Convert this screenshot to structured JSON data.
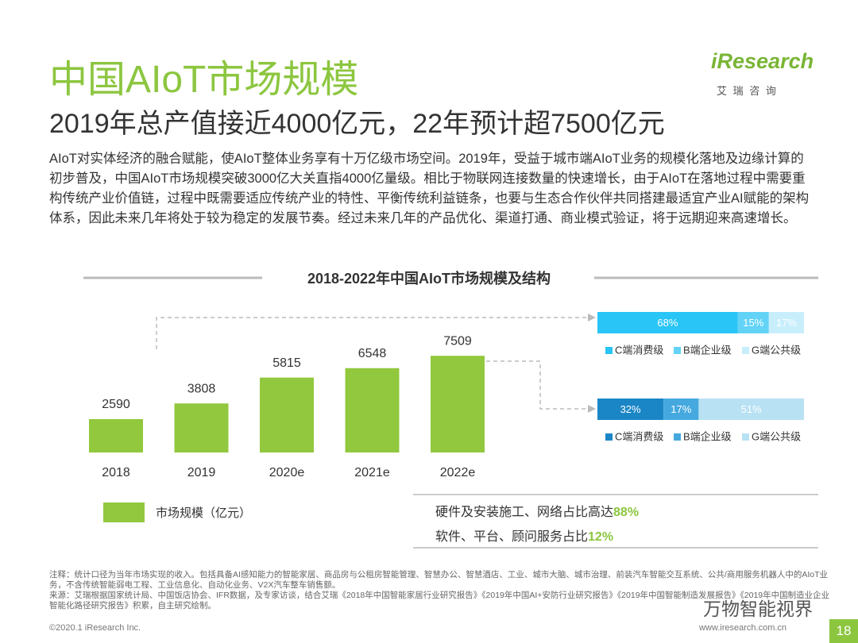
{
  "header": {
    "title": "中国AIoT市场规模",
    "subtitle": "2019年总产值接近4000亿元，22年预计超7500亿元",
    "logo": "iResearch",
    "logo_sub": "艾 瑞 咨 询"
  },
  "body": "AIoT对实体经济的融合赋能，使AIoT整体业务享有十万亿级市场空间。2019年，受益于城市端AIoT业务的规模化落地及边缘计算的初步普及，中国AIoT市场规模突破3000亿大关直指4000亿量级。相比于物联网连接数量的快速增长，由于AIoT在落地过程中需要重构传统产业价值链，过程中既需要适应传统产业的特性、平衡传统利益链条，也要与生态合作伙伴共同搭建最适宜产业AI赋能的架构体系，因此未来几年将处于较为稳定的发展节奏。经过未来几年的产品优化、渠道打通、商业模式验证，将于远期迎来高速增长。",
  "chart_data": [
    {
      "type": "bar",
      "title": "2018-2022年中国AIoT市场规模及结构",
      "categories": [
        "2018",
        "2019",
        "2020e",
        "2021e",
        "2022e"
      ],
      "values": [
        2590,
        3808,
        5815,
        6548,
        7509
      ],
      "color": "#92c83e",
      "legend": "市场规模（亿元）",
      "ylim": [
        0,
        9000
      ]
    },
    {
      "type": "stacked-bar",
      "series": [
        {
          "name": "C端消费级",
          "color": "#29c5f6",
          "values": [
            68
          ],
          "value_labels": [
            "68%"
          ]
        },
        {
          "name": "B端企业级",
          "color": "#62d3f7",
          "values": [
            15
          ],
          "value_labels": [
            "15%"
          ]
        },
        {
          "name": "G端公共级",
          "color": "#c8eefc",
          "values": [
            17
          ],
          "value_labels": [
            "17%"
          ]
        }
      ],
      "xlim": [
        0,
        100
      ]
    },
    {
      "type": "stacked-bar",
      "series": [
        {
          "name": "C端消费级",
          "color": "#1a86c6",
          "values": [
            32
          ],
          "value_labels": [
            "32%"
          ]
        },
        {
          "name": "B端企业级",
          "color": "#45a9df",
          "values": [
            17
          ],
          "value_labels": [
            "17%"
          ]
        },
        {
          "name": "G端公共级",
          "color": "#b9e1f4",
          "values": [
            51
          ],
          "value_labels": [
            "51%"
          ]
        }
      ],
      "xlim": [
        0,
        100
      ]
    }
  ],
  "callouts": [
    {
      "text": "硬件及安装施工、网络占比高达",
      "highlight": "88%"
    },
    {
      "text": "软件、平台、顾问服务占比",
      "highlight": "12%"
    }
  ],
  "notes": [
    "注释：统计口径为当年市场实现的收入。包括具备AI感知能力的智能家居、商品房与公租房智能管理、智慧办公、智慧酒店、工业、城市大脑、城市治理、前装汽车智能交互系统、公共/商用服务机器人中的AIoT业务，不含传统智能弱电工程、工业信息化、自动化业务、V2X汽车整车销售额。",
    "来源：艾瑞根据国家统计局、中国饭店协会、IFR数据，及专家访谈，结合艾瑞《2018年中国智能家居行业研究报告》《2019年中国AI+安防行业研究报告》《2019年中国智能制造发展报告》《2019年中国制造业企业智能化路径研究报告》积累，自主研究绘制。"
  ],
  "footer": {
    "copyright": "©2020.1 iResearch Inc.",
    "website": "www.iresearch.com.cn",
    "page": "18",
    "watermark": "万物智能视界"
  }
}
